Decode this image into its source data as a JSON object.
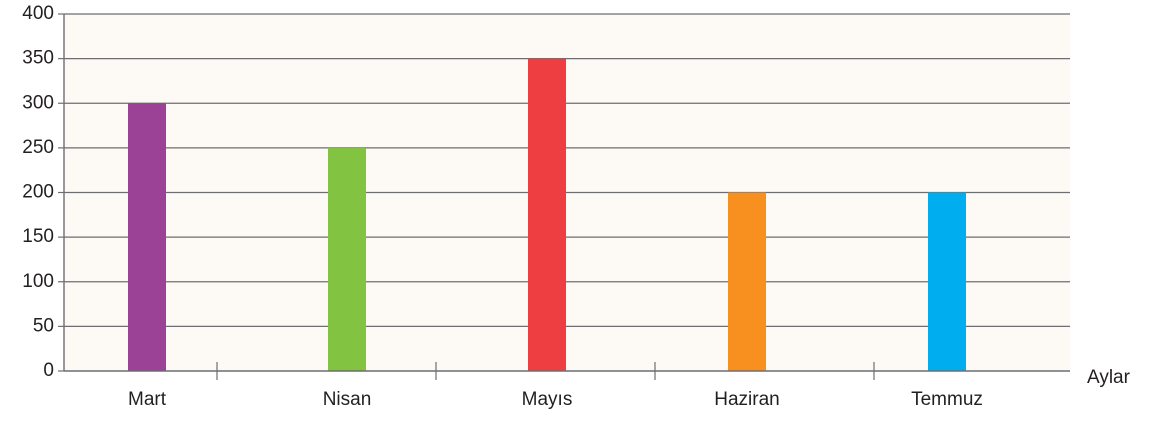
{
  "chart_data": {
    "type": "bar",
    "categories": [
      "Mart",
      "Nisan",
      "Mayıs",
      "Haziran",
      "Temmuz"
    ],
    "values": [
      300,
      250,
      350,
      200,
      200
    ],
    "colors": [
      "#9b4196",
      "#82c341",
      "#ee3e42",
      "#f7901e",
      "#00aeef"
    ],
    "xlabel": "Aylar",
    "ylabel": "",
    "ylim": [
      0,
      400
    ],
    "yticks": [
      0,
      50,
      100,
      150,
      200,
      250,
      300,
      350,
      400
    ],
    "grid": true,
    "plot_background": "#fdf9f4",
    "grid_color": "#6d6e71"
  }
}
